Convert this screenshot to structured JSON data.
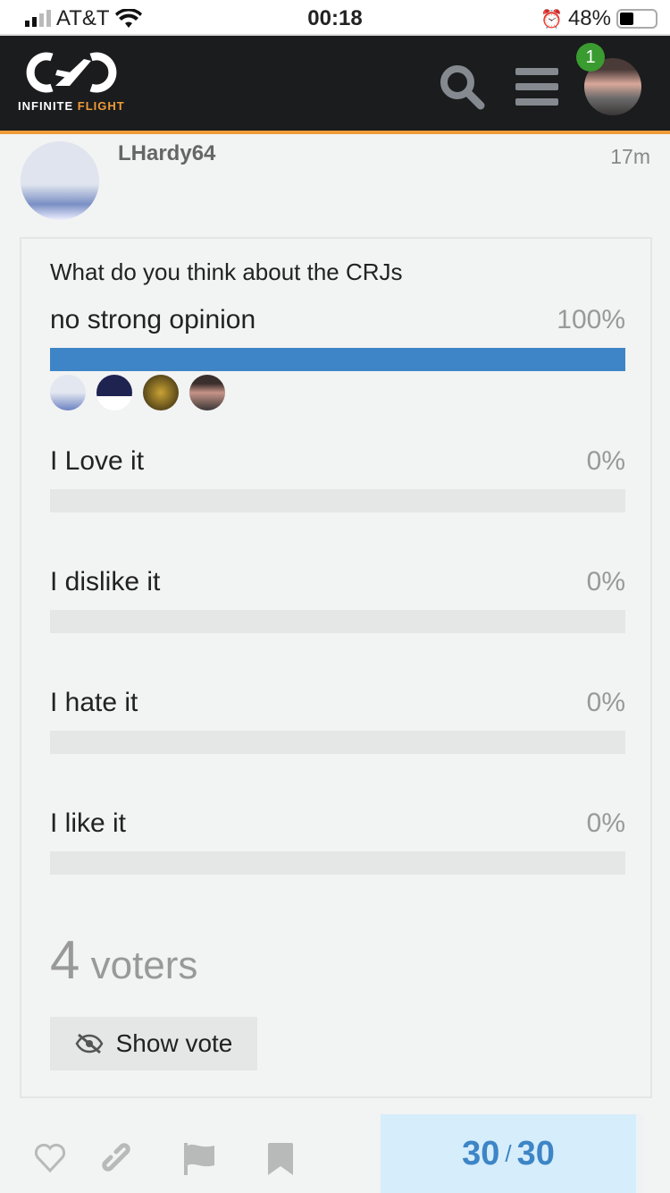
{
  "status_bar": {
    "carrier": "AT&T",
    "time": "00:18",
    "battery": "48%",
    "battery_level": 0.48
  },
  "header": {
    "logo_word_1": "INFINITE",
    "logo_word_2": "FLIGHT",
    "notification_count": "1",
    "icons": [
      "search-icon",
      "menu-icon",
      "user-avatar"
    ]
  },
  "post": {
    "username": "LHardy64",
    "age": "17m"
  },
  "poll": {
    "question": "What do you think about the CRJs",
    "options": [
      {
        "label": "no strong opinion",
        "percent": "100%",
        "fill": 100
      },
      {
        "label": "I Love it",
        "percent": "0%",
        "fill": 0
      },
      {
        "label": "I dislike it",
        "percent": "0%",
        "fill": 0
      },
      {
        "label": "I hate it",
        "percent": "0%",
        "fill": 0
      },
      {
        "label": "I like it",
        "percent": "0%",
        "fill": 0
      }
    ],
    "voters_count": "4",
    "voters_label": "voters",
    "show_vote_label": "Show vote",
    "accent": "#3d85c6"
  },
  "footer": {
    "current": "30",
    "separator": "/",
    "total": "30",
    "icons": [
      "heart-icon",
      "link-icon",
      "flag-icon",
      "bookmark-icon"
    ]
  }
}
